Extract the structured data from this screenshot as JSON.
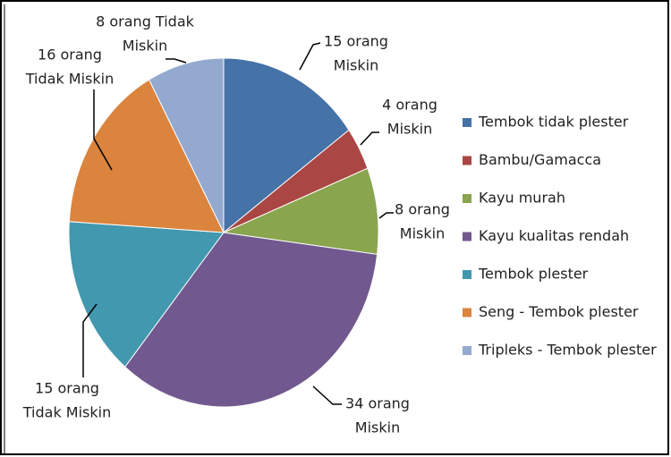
{
  "chart_data": {
    "type": "pie",
    "categories": [
      "Tembok tidak plester",
      "Bambu/Gamacca",
      "Kayu murah",
      "Kayu kualitas rendah",
      "Tembok plester",
      "Seng - Tembok plester",
      "Tripleks - Tembok plester"
    ],
    "values": [
      15,
      4,
      8,
      34,
      15,
      16,
      8
    ],
    "value_labels": [
      [
        "15 orang",
        "Miskin"
      ],
      [
        "4 orang",
        "Miskin"
      ],
      [
        "8 orang",
        "Miskin"
      ],
      [
        "34 orang",
        "Miskin"
      ],
      [
        "15 orang",
        "Tidak Miskin"
      ],
      [
        "16 orang",
        "Tidak Miskin"
      ],
      [
        "8 orang Tidak",
        "Miskin"
      ]
    ],
    "colors": [
      "#4572a7",
      "#aa4643",
      "#89a54e",
      "#71588f",
      "#4198af",
      "#db843d",
      "#93a9cf"
    ],
    "legend": "right"
  }
}
